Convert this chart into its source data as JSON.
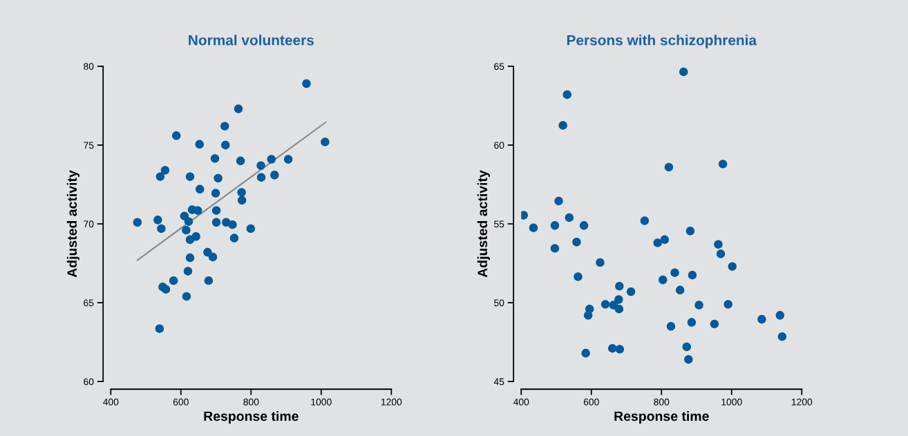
{
  "chart_data": [
    {
      "type": "scatter",
      "title": "Normal volunteers",
      "xlabel": "Response time",
      "ylabel": "Adjusted activity",
      "xlim": [
        400,
        1200
      ],
      "xticks": [
        400,
        600,
        800,
        1000,
        1200
      ],
      "ylim": [
        60,
        80
      ],
      "yticks": [
        60,
        65,
        70,
        75,
        80
      ],
      "grid": false,
      "series": [
        {
          "marker": "circle",
          "color": "#005a9c",
          "x": [
            958,
            764,
            725,
            587,
            653,
            727,
            1011,
            697,
            770,
            858,
            906,
            828,
            555,
            541,
            626,
            706,
            829,
            867,
            654,
            699,
            773,
            774,
            632,
            648,
            701,
            610,
            476,
            534,
            544,
            622,
            615,
            701,
            729,
            747,
            799,
            643,
            626,
            752,
            676,
            691,
            626,
            620,
            679,
            579,
            548,
            557,
            616,
            539
          ],
          "values": [
            78.9,
            77.3,
            76.2,
            75.6,
            75.05,
            75.0,
            75.2,
            74.15,
            74.0,
            74.1,
            74.1,
            73.7,
            73.4,
            73.0,
            73.0,
            72.9,
            72.95,
            73.1,
            72.2,
            71.95,
            72.0,
            71.5,
            70.9,
            70.85,
            70.85,
            70.5,
            70.1,
            70.25,
            69.7,
            70.15,
            69.6,
            70.1,
            70.1,
            69.95,
            69.7,
            69.2,
            69.0,
            69.1,
            68.2,
            67.9,
            67.85,
            67.0,
            66.4,
            66.4,
            66.0,
            65.85,
            65.4,
            63.35
          ]
        },
        {
          "type": "line",
          "color": "#888888",
          "line_style": "solid",
          "x": [
            476,
            1013
          ],
          "values": [
            67.7,
            76.45
          ]
        }
      ]
    },
    {
      "type": "scatter",
      "title": "Persons with schizophrenia",
      "xlabel": "Response time",
      "ylabel": "Adjusted activity",
      "xlim": [
        400,
        1200
      ],
      "xticks": [
        400,
        600,
        800,
        1000,
        1200
      ],
      "ylim": [
        45,
        65
      ],
      "yticks": [
        45,
        50,
        55,
        60,
        65
      ],
      "grid": false,
      "series": [
        {
          "marker": "circle",
          "color": "#005a9c",
          "x": [
            863,
            531,
            519,
            821,
            975,
            507,
            407,
            537,
            435,
            496,
            579,
            752,
            882,
            558,
            496,
            789,
            809,
            962,
            969,
            1002,
            625,
            562,
            838,
            888,
            804,
            680,
            713,
            853,
            678,
            640,
            663,
            679,
            595,
            591,
            907,
            990,
            1086,
            1138,
            827,
            886,
            951,
            1144,
            872,
            877,
            584,
            660,
            681
          ],
          "values": [
            64.65,
            63.2,
            61.25,
            58.6,
            58.8,
            56.45,
            55.55,
            55.4,
            54.75,
            54.9,
            54.9,
            55.2,
            54.55,
            53.85,
            53.45,
            53.8,
            54.0,
            53.7,
            53.1,
            52.3,
            52.55,
            51.65,
            51.9,
            51.75,
            51.45,
            51.05,
            50.7,
            50.8,
            50.2,
            49.9,
            49.85,
            49.6,
            49.6,
            49.2,
            49.85,
            49.9,
            48.95,
            49.2,
            48.5,
            48.75,
            48.65,
            47.85,
            47.2,
            46.4,
            46.8,
            47.1,
            47.05
          ]
        }
      ]
    }
  ]
}
